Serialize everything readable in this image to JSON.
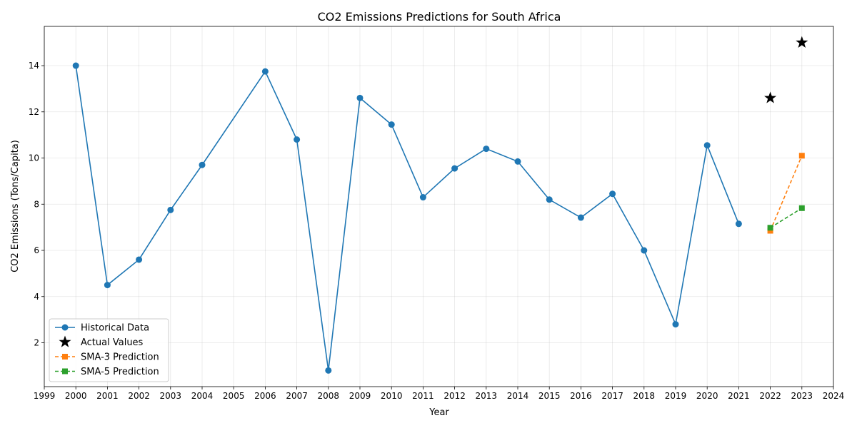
{
  "chart_data": {
    "type": "line",
    "title": "CO2 Emissions Predictions for South Africa",
    "xlabel": "Year",
    "ylabel": "CO2 Emissions (Tons/Capita)",
    "xlim": [
      1999,
      2024
    ],
    "ylim": [
      0.1,
      15.7
    ],
    "xticks": [
      1999,
      2000,
      2001,
      2002,
      2003,
      2004,
      2005,
      2006,
      2007,
      2008,
      2009,
      2010,
      2011,
      2012,
      2013,
      2014,
      2015,
      2016,
      2017,
      2018,
      2019,
      2020,
      2021,
      2022,
      2023,
      2024
    ],
    "yticks": [
      2,
      4,
      6,
      8,
      10,
      12,
      14
    ],
    "grid": true,
    "legend_position": "lower-left",
    "series": [
      {
        "name": "Historical Data",
        "style": "solid-line-circle",
        "color": "#1f77b4",
        "x": [
          2000,
          2001,
          2002,
          2003,
          2004,
          2006,
          2007,
          2008,
          2009,
          2010,
          2011,
          2012,
          2013,
          2014,
          2015,
          2016,
          2017,
          2018,
          2019,
          2020,
          2021
        ],
        "y": [
          14.0,
          4.5,
          5.6,
          7.75,
          9.7,
          13.75,
          10.8,
          0.8,
          12.6,
          11.45,
          8.3,
          9.55,
          10.4,
          9.85,
          8.2,
          7.42,
          8.45,
          6.0,
          2.8,
          10.55,
          7.15
        ]
      },
      {
        "name": "Actual Values",
        "style": "star-marker",
        "color": "#000000",
        "x": [
          2022,
          2023
        ],
        "y": [
          12.6,
          15.0
        ]
      },
      {
        "name": "SMA-3 Prediction",
        "style": "dashed-line-square",
        "color": "#ff7f0e",
        "x": [
          2022,
          2023
        ],
        "y": [
          6.85,
          10.1
        ]
      },
      {
        "name": "SMA-5 Prediction",
        "style": "dashed-line-square",
        "color": "#2ca02c",
        "x": [
          2022,
          2023
        ],
        "y": [
          6.98,
          7.83
        ]
      }
    ]
  }
}
